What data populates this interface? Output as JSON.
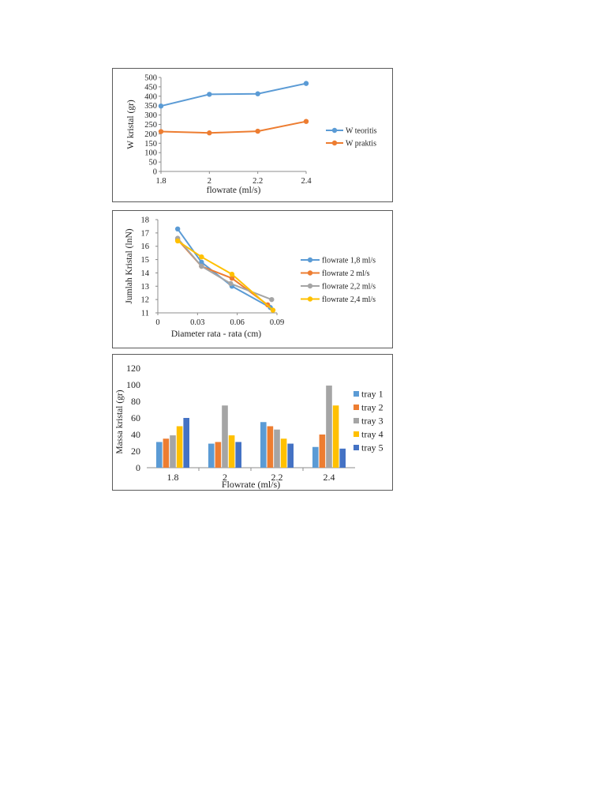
{
  "chart_data": [
    {
      "type": "line",
      "xlabel": "flowrate (ml/s)",
      "ylabel": "W kristal (gr)",
      "x": [
        1.8,
        2,
        2.2,
        2.4
      ],
      "x_ticks": [
        "1.8",
        "2",
        "2.2",
        "2.4"
      ],
      "xlim": [
        1.8,
        2.4
      ],
      "ylim": [
        0,
        500
      ],
      "y_ticks": [
        "0",
        "50",
        "100",
        "150",
        "200",
        "250",
        "300",
        "350",
        "400",
        "450",
        "500"
      ],
      "grid": false,
      "legend_position": "right",
      "series": [
        {
          "name": "W teoritis",
          "color": "#5B9BD5",
          "values": [
            348,
            410,
            413,
            468
          ]
        },
        {
          "name": "W praktis",
          "color": "#ED7D31",
          "values": [
            212,
            205,
            214,
            266
          ]
        }
      ]
    },
    {
      "type": "line",
      "xlabel": "Diameter rata - rata (cm)",
      "ylabel": "Jumlah Kristal (lnN)",
      "xlim": [
        0,
        0.09
      ],
      "ylim": [
        11,
        18
      ],
      "x_ticks": [
        "0",
        "0.03",
        "0.06",
        "0.09"
      ],
      "x_tick_values": [
        0,
        0.03,
        0.06,
        0.09
      ],
      "y_ticks": [
        "11",
        "12",
        "13",
        "14",
        "15",
        "16",
        "17",
        "18"
      ],
      "grid": false,
      "legend_position": "right",
      "series": [
        {
          "name": "flowrate 1,8 ml/s",
          "color": "#5B9BD5",
          "x": [
            0.015,
            0.033,
            0.056,
            0.085
          ],
          "values": [
            17.3,
            14.8,
            13.0,
            11.4
          ]
        },
        {
          "name": "flowrate 2 ml/s",
          "color": "#ED7D31",
          "x": [
            0.015,
            0.033,
            0.056,
            0.083
          ],
          "values": [
            16.5,
            14.5,
            13.6,
            11.6
          ]
        },
        {
          "name": "flowrate 2,2 ml/s",
          "color": "#A5A5A5",
          "x": [
            0.015,
            0.033,
            0.055,
            0.086
          ],
          "values": [
            16.6,
            14.5,
            13.2,
            12.0
          ]
        },
        {
          "name": "flowrate 2,4 ml/s",
          "color": "#FFC000",
          "x": [
            0.015,
            0.033,
            0.056,
            0.087
          ],
          "values": [
            16.4,
            15.2,
            13.9,
            11.2
          ]
        }
      ]
    },
    {
      "type": "bar",
      "xlabel": "Flowrate (ml/s)",
      "ylabel": "Massa kristal (gr)",
      "categories": [
        "1.8",
        "2",
        "2.2",
        "2.4"
      ],
      "ylim": [
        0,
        120
      ],
      "y_ticks": [
        "0",
        "20",
        "40",
        "60",
        "80",
        "100",
        "120"
      ],
      "grid": false,
      "legend_position": "right",
      "series": [
        {
          "name": "tray 1",
          "color": "#5B9BD5",
          "values": [
            31,
            29,
            55,
            25
          ]
        },
        {
          "name": "tray 2",
          "color": "#ED7D31",
          "values": [
            35,
            31,
            50,
            40
          ]
        },
        {
          "name": "tray 3",
          "color": "#A5A5A5",
          "values": [
            39,
            75,
            46,
            99
          ]
        },
        {
          "name": "tray 4",
          "color": "#FFC000",
          "values": [
            50,
            39,
            35,
            75
          ]
        },
        {
          "name": "tray 5",
          "color": "#4472C4",
          "values": [
            60,
            31,
            29,
            23
          ]
        }
      ]
    }
  ]
}
